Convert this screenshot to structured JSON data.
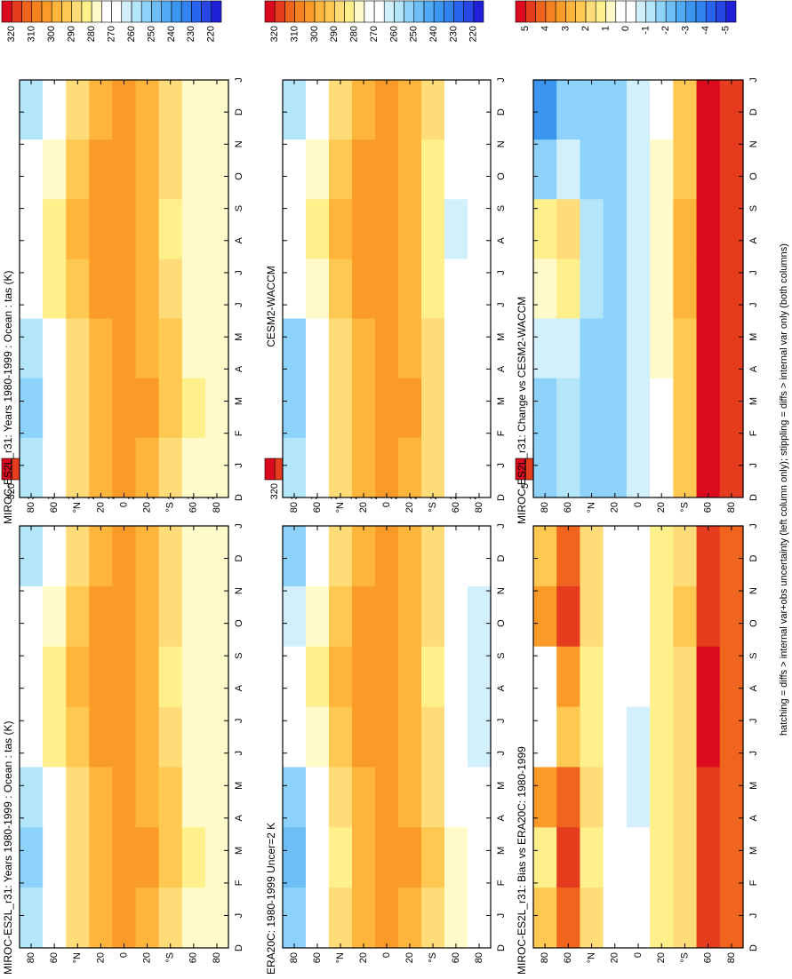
{
  "caption": "hatching = diffs > internal var+obs uncertainty (left column only); stippling = diffs > internal var only (both columns)",
  "palettes": {
    "temperature": {
      "levels": [
        215,
        220,
        225,
        230,
        235,
        240,
        245,
        250,
        255,
        260,
        265,
        270,
        275,
        280,
        285,
        290,
        295,
        300,
        305,
        310,
        315,
        320,
        325
      ]
    },
    "difference": {
      "levels": [
        -5.5,
        -5,
        -4.5,
        -4,
        -3.5,
        -3,
        -2.5,
        -2,
        -1.5,
        -1,
        -0.5,
        0,
        0.5,
        1,
        1.5,
        2,
        2.5,
        3,
        3.5,
        4,
        4.5,
        5,
        5.5
      ]
    },
    "colors": [
      "#2020d8",
      "#2846e6",
      "#2864f0",
      "#3282f0",
      "#3c96f0",
      "#50aaf5",
      "#6ebef5",
      "#8cd2fa",
      "#b4e6fa",
      "#d2f0fc",
      "#ffffff",
      "#ffffff",
      "#fffac8",
      "#fff08c",
      "#ffdc78",
      "#ffc850",
      "#ffb43c",
      "#fa9b28",
      "#f5821e",
      "#f0641e",
      "#e63c1e",
      "#dc0a1e"
    ]
  },
  "chart_data": [
    {
      "type": "contour",
      "title": "MIROC-ES2L_r31: Years 1980-1999 : Ocean : tas (K)",
      "palette": "temperature",
      "categories": [
        "D",
        "J",
        "F",
        "M",
        "A",
        "M",
        "J",
        "J",
        "A",
        "S",
        "O",
        "N",
        "D",
        "J"
      ],
      "lat": [
        80,
        60,
        40,
        20,
        0,
        -20,
        -40,
        -60,
        -80
      ],
      "ylim": [
        90,
        -90
      ],
      "yticks": [
        80,
        60,
        {
          "value": 40,
          "label": "°N"
        },
        20,
        0,
        {
          "value": -20,
          "label": "20"
        },
        {
          "value": -40,
          "label": "°S"
        },
        {
          "value": -60,
          "label": "60"
        },
        {
          "value": -80,
          "label": "80"
        }
      ],
      "colorbar_ticks": [
        320,
        310,
        300,
        290,
        280,
        270,
        260,
        250,
        240,
        230,
        220
      ],
      "z": [
        [
          258,
          252,
          256,
          271,
          273,
          266,
          258
        ],
        [
          273,
          272,
          273,
          280,
          284,
          278,
          273
        ],
        [
          287,
          285,
          287,
          293,
          297,
          292,
          287
        ],
        [
          296,
          295,
          297,
          300,
          301,
          300,
          297
        ],
        [
          301,
          301,
          302,
          301,
          300,
          301,
          301
        ],
        [
          299,
          300,
          299,
          296,
          295,
          296,
          299
        ],
        [
          289,
          291,
          290,
          286,
          284,
          286,
          289
        ],
        [
          279,
          280,
          279,
          277,
          276,
          277,
          279
        ],
        [
          276,
          276,
          276,
          276,
          276,
          276,
          276
        ]
      ]
    },
    {
      "type": "contour",
      "title": "MIROC-ES2L_r31: Years 1980-1999 : Ocean : tas (K)",
      "palette": "temperature",
      "categories": [
        "D",
        "J",
        "F",
        "M",
        "A",
        "M",
        "J",
        "J",
        "A",
        "S",
        "O",
        "N",
        "D",
        "J"
      ],
      "lat": [
        80,
        60,
        40,
        20,
        0,
        -20,
        -40,
        -60,
        -80
      ],
      "ylim": [
        90,
        -90
      ],
      "yticks": [
        80,
        60,
        {
          "value": 40,
          "label": "°N"
        },
        20,
        0,
        {
          "value": -20,
          "label": "20"
        },
        {
          "value": -40,
          "label": "°S"
        },
        {
          "value": -60,
          "label": "60"
        },
        {
          "value": -80,
          "label": "80"
        }
      ],
      "colorbar_ticks": [
        320,
        310,
        300,
        290,
        280,
        270,
        260,
        250,
        240,
        230,
        220
      ],
      "z": [
        [
          258,
          252,
          256,
          271,
          273,
          266,
          258
        ],
        [
          273,
          272,
          273,
          280,
          284,
          278,
          273
        ],
        [
          287,
          285,
          287,
          293,
          297,
          292,
          287
        ],
        [
          296,
          295,
          297,
          300,
          301,
          300,
          297
        ],
        [
          301,
          301,
          302,
          301,
          300,
          301,
          301
        ],
        [
          299,
          300,
          299,
          296,
          295,
          296,
          299
        ],
        [
          289,
          291,
          290,
          286,
          284,
          286,
          289
        ],
        [
          279,
          280,
          279,
          277,
          276,
          277,
          279
        ],
        [
          276,
          276,
          276,
          276,
          276,
          276,
          276
        ]
      ]
    },
    {
      "type": "contour",
      "title": "ERA20C: 1980-1999 Uncer=2 K",
      "palette": "temperature",
      "categories": [
        "D",
        "J",
        "F",
        "M",
        "A",
        "M",
        "J",
        "J",
        "A",
        "S",
        "O",
        "N",
        "D",
        "J"
      ],
      "lat": [
        80,
        60,
        40,
        20,
        0,
        -20,
        -40,
        -60,
        -80
      ],
      "ylim": [
        90,
        -90
      ],
      "yticks": [
        80,
        60,
        {
          "value": 40,
          "label": "°N"
        },
        20,
        0,
        {
          "value": -20,
          "label": "20"
        },
        {
          "value": -40,
          "label": "°S"
        },
        {
          "value": -60,
          "label": "60"
        },
        {
          "value": -80,
          "label": "80"
        }
      ],
      "colorbar_ticks": [
        320,
        310,
        300,
        290,
        280,
        270,
        260,
        250,
        240,
        230,
        220
      ],
      "z": [
        [
          250,
          248,
          252,
          271,
          273,
          262,
          250
        ],
        [
          270,
          270,
          272,
          279,
          283,
          277,
          270
        ],
        [
          286,
          284,
          286,
          293,
          296,
          291,
          286
        ],
        [
          296,
          295,
          297,
          300,
          301,
          300,
          296
        ],
        [
          301,
          302,
          302,
          301,
          300,
          300,
          301
        ],
        [
          299,
          300,
          299,
          296,
          295,
          296,
          299
        ],
        [
          288,
          290,
          289,
          285,
          283,
          285,
          288
        ],
        [
          275,
          276,
          274,
          270,
          269,
          271,
          274
        ],
        [
          268,
          269,
          266,
          262,
          261,
          263,
          267
        ]
      ]
    },
    {
      "type": "contour",
      "title": "CESM2-WACCM",
      "palette": "temperature",
      "categories": [
        "D",
        "J",
        "F",
        "M",
        "A",
        "M",
        "J",
        "J",
        "A",
        "S",
        "O",
        "N",
        "D",
        "J"
      ],
      "lat": [
        80,
        60,
        40,
        20,
        0,
        -20,
        -40,
        -60,
        -80
      ],
      "ylim": [
        90,
        -90
      ],
      "yticks": [
        80,
        60,
        {
          "value": 40,
          "label": "°N"
        },
        20,
        0,
        {
          "value": -20,
          "label": "20"
        },
        {
          "value": -40,
          "label": "°S"
        },
        {
          "value": -60,
          "label": "60"
        },
        {
          "value": -80,
          "label": "80"
        }
      ],
      "colorbar_ticks": [
        320,
        310,
        300,
        290,
        280,
        270,
        260,
        250,
        240,
        230,
        220
      ],
      "z": [
        [
          255,
          251,
          254,
          271,
          272,
          266,
          255
        ],
        [
          273,
          272,
          273,
          279,
          283,
          278,
          273
        ],
        [
          288,
          286,
          288,
          294,
          297,
          293,
          288
        ],
        [
          298,
          297,
          299,
          302,
          303,
          302,
          298
        ],
        [
          302,
          302,
          303,
          302,
          301,
          302,
          302
        ],
        [
          299,
          300,
          299,
          296,
          295,
          296,
          299
        ],
        [
          287,
          289,
          288,
          284,
          282,
          284,
          287
        ],
        [
          272,
          273,
          271,
          266,
          264,
          267,
          272
        ],
        [
          272,
          272,
          271,
          270,
          270,
          271,
          272
        ]
      ]
    },
    {
      "type": "contour",
      "title": "MIROC-ES2L_r31: Bias vs ERA20C: 1980-1999",
      "palette": "difference",
      "categories": [
        "D",
        "J",
        "F",
        "M",
        "A",
        "M",
        "J",
        "J",
        "A",
        "S",
        "O",
        "N",
        "D",
        "J"
      ],
      "lat": [
        80,
        60,
        40,
        20,
        0,
        -20,
        -40,
        -60,
        -80
      ],
      "ylim": [
        90,
        -90
      ],
      "yticks": [
        80,
        60,
        {
          "value": 40,
          "label": "°N"
        },
        20,
        0,
        {
          "value": -20,
          "label": "20"
        },
        {
          "value": -40,
          "label": "°S"
        },
        {
          "value": -60,
          "label": "60"
        },
        {
          "value": -80,
          "label": "80"
        }
      ],
      "colorbar_ticks": [
        5,
        4,
        3,
        2,
        1,
        0,
        -1,
        -2,
        -3,
        -4,
        -5
      ],
      "z": [
        [
          2,
          1,
          3,
          -0.2,
          0,
          3,
          2
        ],
        [
          4,
          4.5,
          4,
          2,
          3,
          4.5,
          4
        ],
        [
          1.5,
          1.2,
          1.5,
          1,
          1,
          1.5,
          1.5
        ],
        [
          0,
          0,
          0,
          0,
          0,
          0,
          0
        ],
        [
          -0.2,
          0,
          -0.6,
          -0.8,
          0,
          0,
          0
        ],
        [
          1,
          1,
          1,
          1,
          1,
          1.2,
          1
        ],
        [
          1.5,
          1.5,
          1.5,
          1.5,
          1.5,
          2,
          1.5
        ],
        [
          4.5,
          4.5,
          4.5,
          5,
          5,
          4.5,
          4.5
        ],
        [
          4,
          4,
          4,
          4,
          4,
          4,
          4
        ]
      ]
    },
    {
      "type": "contour",
      "title": "MIROC-ES2L_r31: Change vs CESM2-WACCM",
      "palette": "difference",
      "categories": [
        "D",
        "J",
        "F",
        "M",
        "A",
        "M",
        "J",
        "J",
        "A",
        "S",
        "O",
        "N",
        "D",
        "J"
      ],
      "lat": [
        80,
        60,
        40,
        20,
        0,
        -20,
        -40,
        -60,
        -80
      ],
      "ylim": [
        90,
        -90
      ],
      "yticks": [
        80,
        60,
        {
          "value": 40,
          "label": "°N"
        },
        20,
        0,
        {
          "value": -20,
          "label": "20"
        },
        {
          "value": -40,
          "label": "°S"
        },
        {
          "value": -60,
          "label": "60"
        },
        {
          "value": -80,
          "label": "80"
        }
      ],
      "colorbar_ticks": [
        5,
        4,
        3,
        2,
        1,
        0,
        -1,
        -2,
        -3,
        -4,
        -5
      ],
      "z": [
        [
          -2,
          -2,
          -1,
          0.5,
          1,
          -2,
          -3.5
        ],
        [
          -1.5,
          -1.5,
          -1,
          1,
          1.5,
          -1,
          -2
        ],
        [
          -2,
          -2,
          -2,
          -1.5,
          -1.5,
          -2,
          -2
        ],
        [
          -2,
          -2,
          -2,
          -2,
          -2,
          -2,
          -2
        ],
        [
          -0.8,
          -0.8,
          -0.8,
          -0.8,
          -0.8,
          -0.8,
          -0.8
        ],
        [
          0.3,
          0.3,
          0.5,
          0.5,
          0.8,
          0.5,
          0.3
        ],
        [
          2,
          2,
          2,
          2.5,
          2.5,
          2,
          2
        ],
        [
          5,
          5,
          5,
          5,
          5,
          5,
          5
        ],
        [
          4.5,
          4.5,
          4.5,
          4.5,
          4.5,
          4.5,
          4.5
        ]
      ]
    }
  ]
}
